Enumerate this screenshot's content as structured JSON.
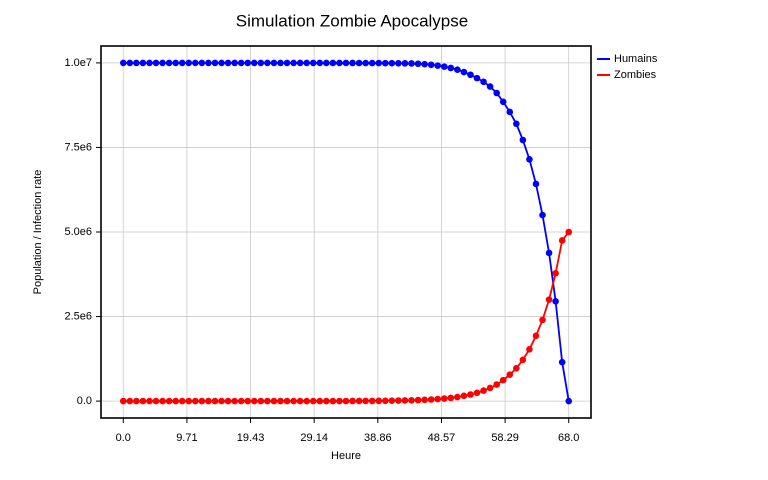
{
  "chart_data": {
    "type": "line",
    "title": "Simulation Zombie Apocalypse",
    "x_label": "Heure",
    "y_label": "Population / Infection rate",
    "x": [
      0,
      1,
      2,
      3,
      4,
      5,
      6,
      7,
      8,
      9,
      10,
      11,
      12,
      13,
      14,
      15,
      16,
      17,
      18,
      19,
      20,
      21,
      22,
      23,
      24,
      25,
      26,
      27,
      28,
      29,
      30,
      31,
      32,
      33,
      34,
      35,
      36,
      37,
      38,
      39,
      40,
      41,
      42,
      43,
      44,
      45,
      46,
      47,
      48,
      49,
      50,
      51,
      52,
      53,
      54,
      55,
      56,
      57,
      58,
      59,
      60,
      61,
      62,
      63,
      64,
      65,
      66,
      67,
      68
    ],
    "series": [
      {
        "name": "Humains",
        "color": "#0000ff",
        "values": [
          10000000,
          10000000,
          9999999,
          9999999,
          9999998,
          9999998,
          9999997,
          9999996,
          9999995,
          9999994,
          9999992,
          9999990,
          9999987,
          9999984,
          9999980,
          9999975,
          9999968,
          9999960,
          9999950,
          9999938,
          9999922,
          9999902,
          9999878,
          9999847,
          9999809,
          9999761,
          9999701,
          9999626,
          9999533,
          9999416,
          9999270,
          9999088,
          9998860,
          9998575,
          9998219,
          9997774,
          9997218,
          9996523,
          9995654,
          9994568,
          9993210,
          9991513,
          9989392,
          9986740,
          9983426,
          9975000,
          9962000,
          9945000,
          9920000,
          9890000,
          9850000,
          9800000,
          9730000,
          9650000,
          9550000,
          9440000,
          9300000,
          9110000,
          8850000,
          8550000,
          8200000,
          7720000,
          7150000,
          6420000,
          5500000,
          4380000,
          2950000,
          1150000,
          0
        ]
      },
      {
        "name": "Zombies",
        "color": "#ff0000",
        "values": [
          1,
          1,
          2,
          2,
          3,
          4,
          5,
          6,
          7,
          9,
          12,
          14,
          18,
          23,
          28,
          35,
          44,
          55,
          69,
          86,
          108,
          135,
          170,
          210,
          260,
          330,
          410,
          510,
          640,
          800,
          1010,
          1260,
          1580,
          1970,
          2460,
          3080,
          3850,
          4800,
          6000,
          7500,
          9400,
          11800,
          14700,
          18400,
          23000,
          29000,
          37000,
          47000,
          60000,
          75000,
          95000,
          120000,
          155000,
          195000,
          245000,
          310000,
          390000,
          490000,
          620000,
          780000,
          970000,
          1220000,
          1530000,
          1930000,
          2400000,
          3000000,
          3780000,
          4750000,
          5000000
        ]
      }
    ],
    "xlim": [
      -3.4,
      71.4
    ],
    "xticks": [
      {
        "value": 0,
        "label": "0.0"
      },
      {
        "value": 9.714,
        "label": "9.71"
      },
      {
        "value": 19.429,
        "label": "19.43"
      },
      {
        "value": 29.143,
        "label": "29.14"
      },
      {
        "value": 38.857,
        "label": "38.86"
      },
      {
        "value": 48.571,
        "label": "48.57"
      },
      {
        "value": 58.286,
        "label": "58.29"
      },
      {
        "value": 68,
        "label": "68.0"
      }
    ],
    "ylim": [
      -500000,
      10500000
    ],
    "yticks": [
      {
        "value": 0,
        "label": "0.0"
      },
      {
        "value": 2500000,
        "label": "2.5e6"
      },
      {
        "value": 5000000,
        "label": "5.0e6"
      },
      {
        "value": 7500000,
        "label": "7.5e6"
      },
      {
        "value": 10000000,
        "label": "1.0e7"
      }
    ],
    "grid": true,
    "legend": "outside-upper-right"
  }
}
